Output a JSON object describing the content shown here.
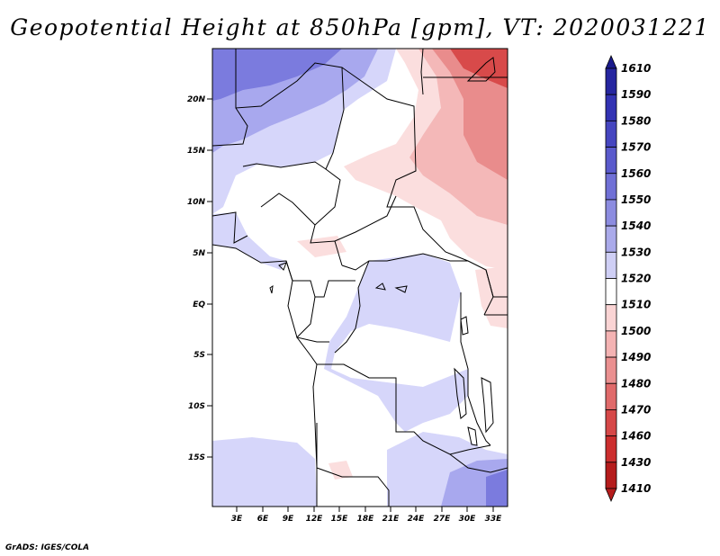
{
  "title": "Geopotential Height at 850hPa [gpm], VT: 2020031221",
  "footer": "GrADS: IGES/COLA",
  "map": {
    "lat_labels": [
      "20N",
      "15N",
      "10N",
      "5N",
      "EQ",
      "5S",
      "10S",
      "15S"
    ],
    "lon_labels": [
      "3E",
      "6E",
      "9E",
      "12E",
      "15E",
      "18E",
      "21E",
      "24E",
      "27E",
      "30E",
      "33E"
    ]
  },
  "colorbar": {
    "levels": [
      "1610",
      "1590",
      "1580",
      "1570",
      "1560",
      "1550",
      "1540",
      "1530",
      "1520",
      "1510",
      "1500",
      "1490",
      "1480",
      "1470",
      "1460",
      "1430",
      "1410"
    ],
    "colors": [
      "#1a1a8c",
      "#2626a0",
      "#3333b3",
      "#4646c0",
      "#5a5acc",
      "#7070d6",
      "#8c8ce0",
      "#aaaaea",
      "#cfcff5",
      "#ffffff",
      "#fad4d4",
      "#f4b3b3",
      "#ea9090",
      "#e06a6a",
      "#d64848",
      "#cc2e2e",
      "#b51c1c"
    ]
  },
  "colors": {
    "blue_strong": "#7b7bde",
    "blue_mid": "#a8a8ee",
    "blue_light": "#d6d6fa",
    "red_light": "#fbdede",
    "red_mid": "#f4b8b8",
    "red_strong": "#e98c8c",
    "red_deep": "#d84a4a"
  }
}
